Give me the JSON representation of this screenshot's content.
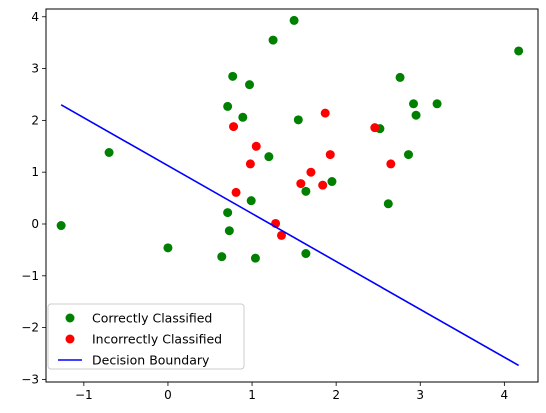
{
  "chart_data": {
    "type": "scatter",
    "xlim": [
      -1.45,
      4.4
    ],
    "ylim": [
      -3.05,
      4.15
    ],
    "x_ticks": [
      -1,
      0,
      1,
      2,
      3,
      4
    ],
    "y_ticks": [
      -3,
      -2,
      -1,
      0,
      1,
      2,
      3,
      4
    ],
    "grid": false,
    "legend_position": "lower-left",
    "series": [
      {
        "name": "Correctly Classified",
        "kind": "scatter",
        "color": "#008000",
        "points": [
          [
            -1.27,
            -0.03
          ],
          [
            -0.7,
            1.38
          ],
          [
            0.0,
            -0.46
          ],
          [
            0.64,
            -0.63
          ],
          [
            0.71,
            0.22
          ],
          [
            0.73,
            -0.13
          ],
          [
            1.04,
            -0.66
          ],
          [
            0.99,
            0.45
          ],
          [
            0.71,
            2.27
          ],
          [
            0.77,
            2.85
          ],
          [
            0.97,
            2.69
          ],
          [
            0.89,
            2.06
          ],
          [
            1.2,
            1.3
          ],
          [
            1.25,
            3.55
          ],
          [
            1.5,
            3.93
          ],
          [
            1.55,
            2.01
          ],
          [
            1.64,
            0.63
          ],
          [
            1.64,
            -0.57
          ],
          [
            1.95,
            0.82
          ],
          [
            2.52,
            1.84
          ],
          [
            2.62,
            0.39
          ],
          [
            2.76,
            2.83
          ],
          [
            2.86,
            1.34
          ],
          [
            2.92,
            2.32
          ],
          [
            2.95,
            2.1
          ],
          [
            3.2,
            2.32
          ],
          [
            4.17,
            3.34
          ]
        ]
      },
      {
        "name": "Incorrectly Classified",
        "kind": "scatter",
        "color": "#ff0000",
        "points": [
          [
            0.78,
            1.88
          ],
          [
            0.81,
            0.61
          ],
          [
            0.98,
            1.16
          ],
          [
            1.05,
            1.5
          ],
          [
            1.28,
            0.01
          ],
          [
            1.35,
            -0.22
          ],
          [
            1.58,
            0.78
          ],
          [
            1.7,
            1.0
          ],
          [
            1.84,
            0.75
          ],
          [
            1.87,
            2.14
          ],
          [
            1.93,
            1.34
          ],
          [
            2.46,
            1.86
          ],
          [
            2.65,
            1.16
          ]
        ]
      },
      {
        "name": "Decision Boundary",
        "kind": "line",
        "color": "#0000ff",
        "points": [
          [
            -1.27,
            2.3
          ],
          [
            4.17,
            -2.73
          ]
        ]
      }
    ]
  }
}
